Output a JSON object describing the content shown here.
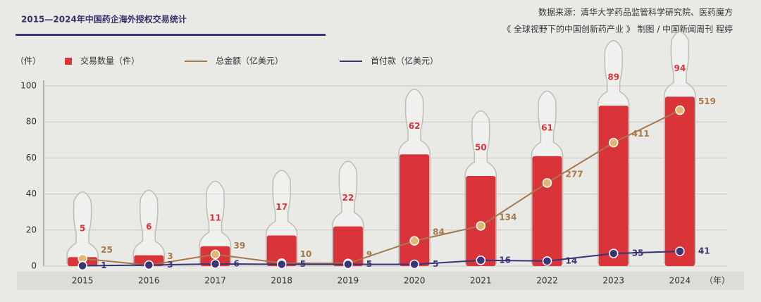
{
  "chart_data": {
    "type": "bar",
    "title": "2015—2024年中国药企海外授权交易统计",
    "source": [
      "数据来源：清华大学药品监管科学研究院、医药魔方",
      "《 全球视野下的中国创新药产业 》   制图 / 中国新闻周刊   程婷"
    ],
    "y_unit": "（件）",
    "x_unit": "（年）",
    "categories": [
      "2015",
      "2016",
      "2017",
      "2018",
      "2019",
      "2020",
      "2021",
      "2022",
      "2023",
      "2024"
    ],
    "series": [
      {
        "name": "交易数量（件）",
        "color": "#d9343a",
        "values": [
          5,
          6,
          11,
          17,
          22,
          62,
          50,
          61,
          89,
          94
        ]
      },
      {
        "name": "总金额（亿美元）",
        "color": "#a6784a",
        "axis": "y2",
        "values": [
          25,
          3,
          39,
          10,
          9,
          84,
          134,
          277,
          411,
          519
        ]
      },
      {
        "name": "首付款（亿美元）",
        "color": "#3a3576",
        "axis": "y3",
        "values": [
          1,
          3,
          6,
          5,
          5,
          5,
          16,
          14,
          35,
          41
        ]
      }
    ],
    "ylim": [
      0,
      100
    ],
    "yticks": [
      0,
      20,
      40,
      60,
      80,
      100
    ],
    "y2lim": [
      0,
      600
    ],
    "y3lim": [
      0,
      500
    ],
    "grid": true
  }
}
